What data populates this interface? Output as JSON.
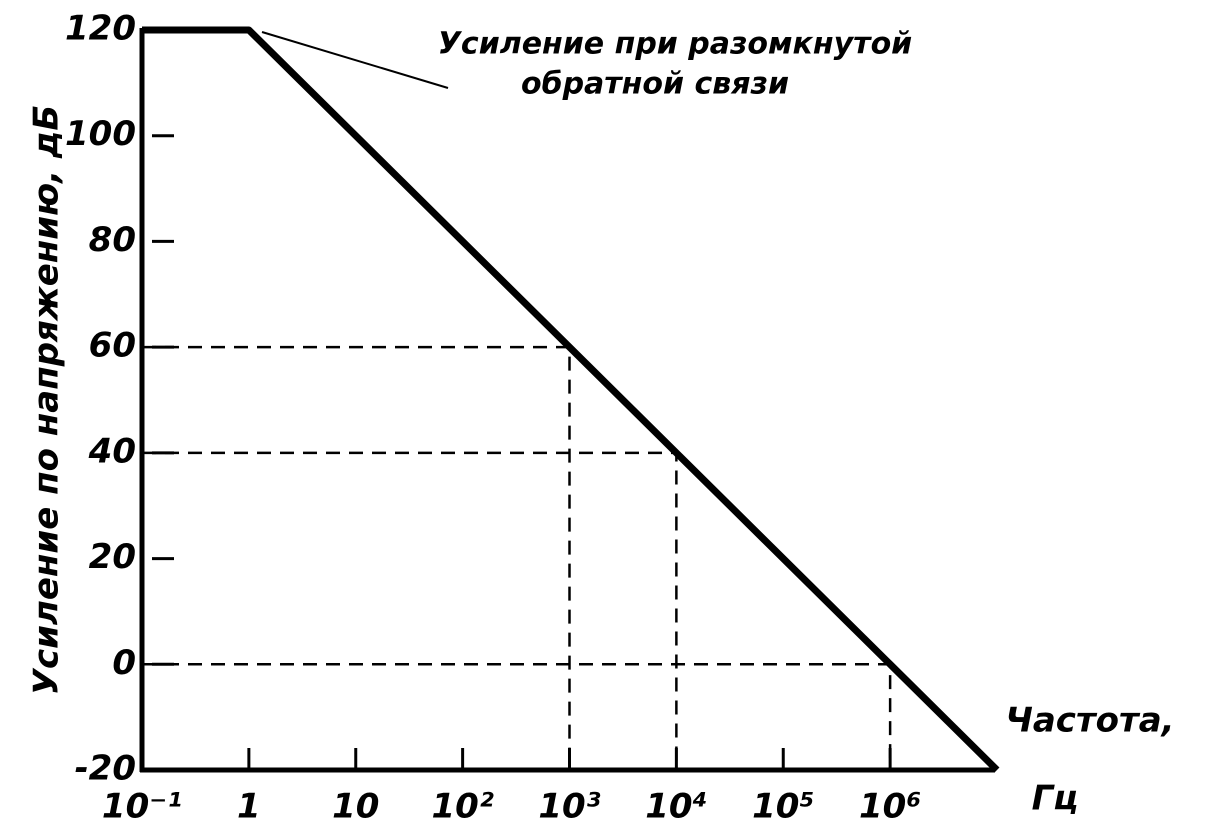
{
  "chart_data": {
    "type": "line",
    "xscale": "log",
    "annotation": [
      "Усиление при разомкнутой",
      "обратной связи"
    ],
    "xlabel": [
      "Частота,",
      "Гц"
    ],
    "ylabel": "Усиление по напряжению, дБ",
    "series": [
      {
        "color": "#000000",
        "x": [
          0.1,
          1,
          1000,
          10000,
          1000000,
          10000000
        ],
        "values": [
          120,
          120,
          60,
          40,
          0,
          -20
        ]
      }
    ],
    "reference_points": [
      {
        "x": 1000,
        "y": 60
      },
      {
        "x": 10000,
        "y": 40
      },
      {
        "x": 1000000,
        "y": 0
      }
    ],
    "xlim": [
      0.1,
      10000000
    ],
    "xticks": [
      {
        "value": 0.1,
        "label": "10⁻¹"
      },
      1,
      10,
      {
        "value": 100,
        "label": "10²"
      },
      {
        "value": 1000,
        "label": "10³"
      },
      {
        "value": 10000,
        "label": "10⁴"
      },
      {
        "value": 100000,
        "label": "10⁵"
      },
      {
        "value": 1000000,
        "label": "10⁶"
      }
    ],
    "ylim": [
      -20,
      120
    ],
    "yticks": [
      -20,
      0,
      20,
      40,
      60,
      80,
      100,
      120
    ]
  }
}
